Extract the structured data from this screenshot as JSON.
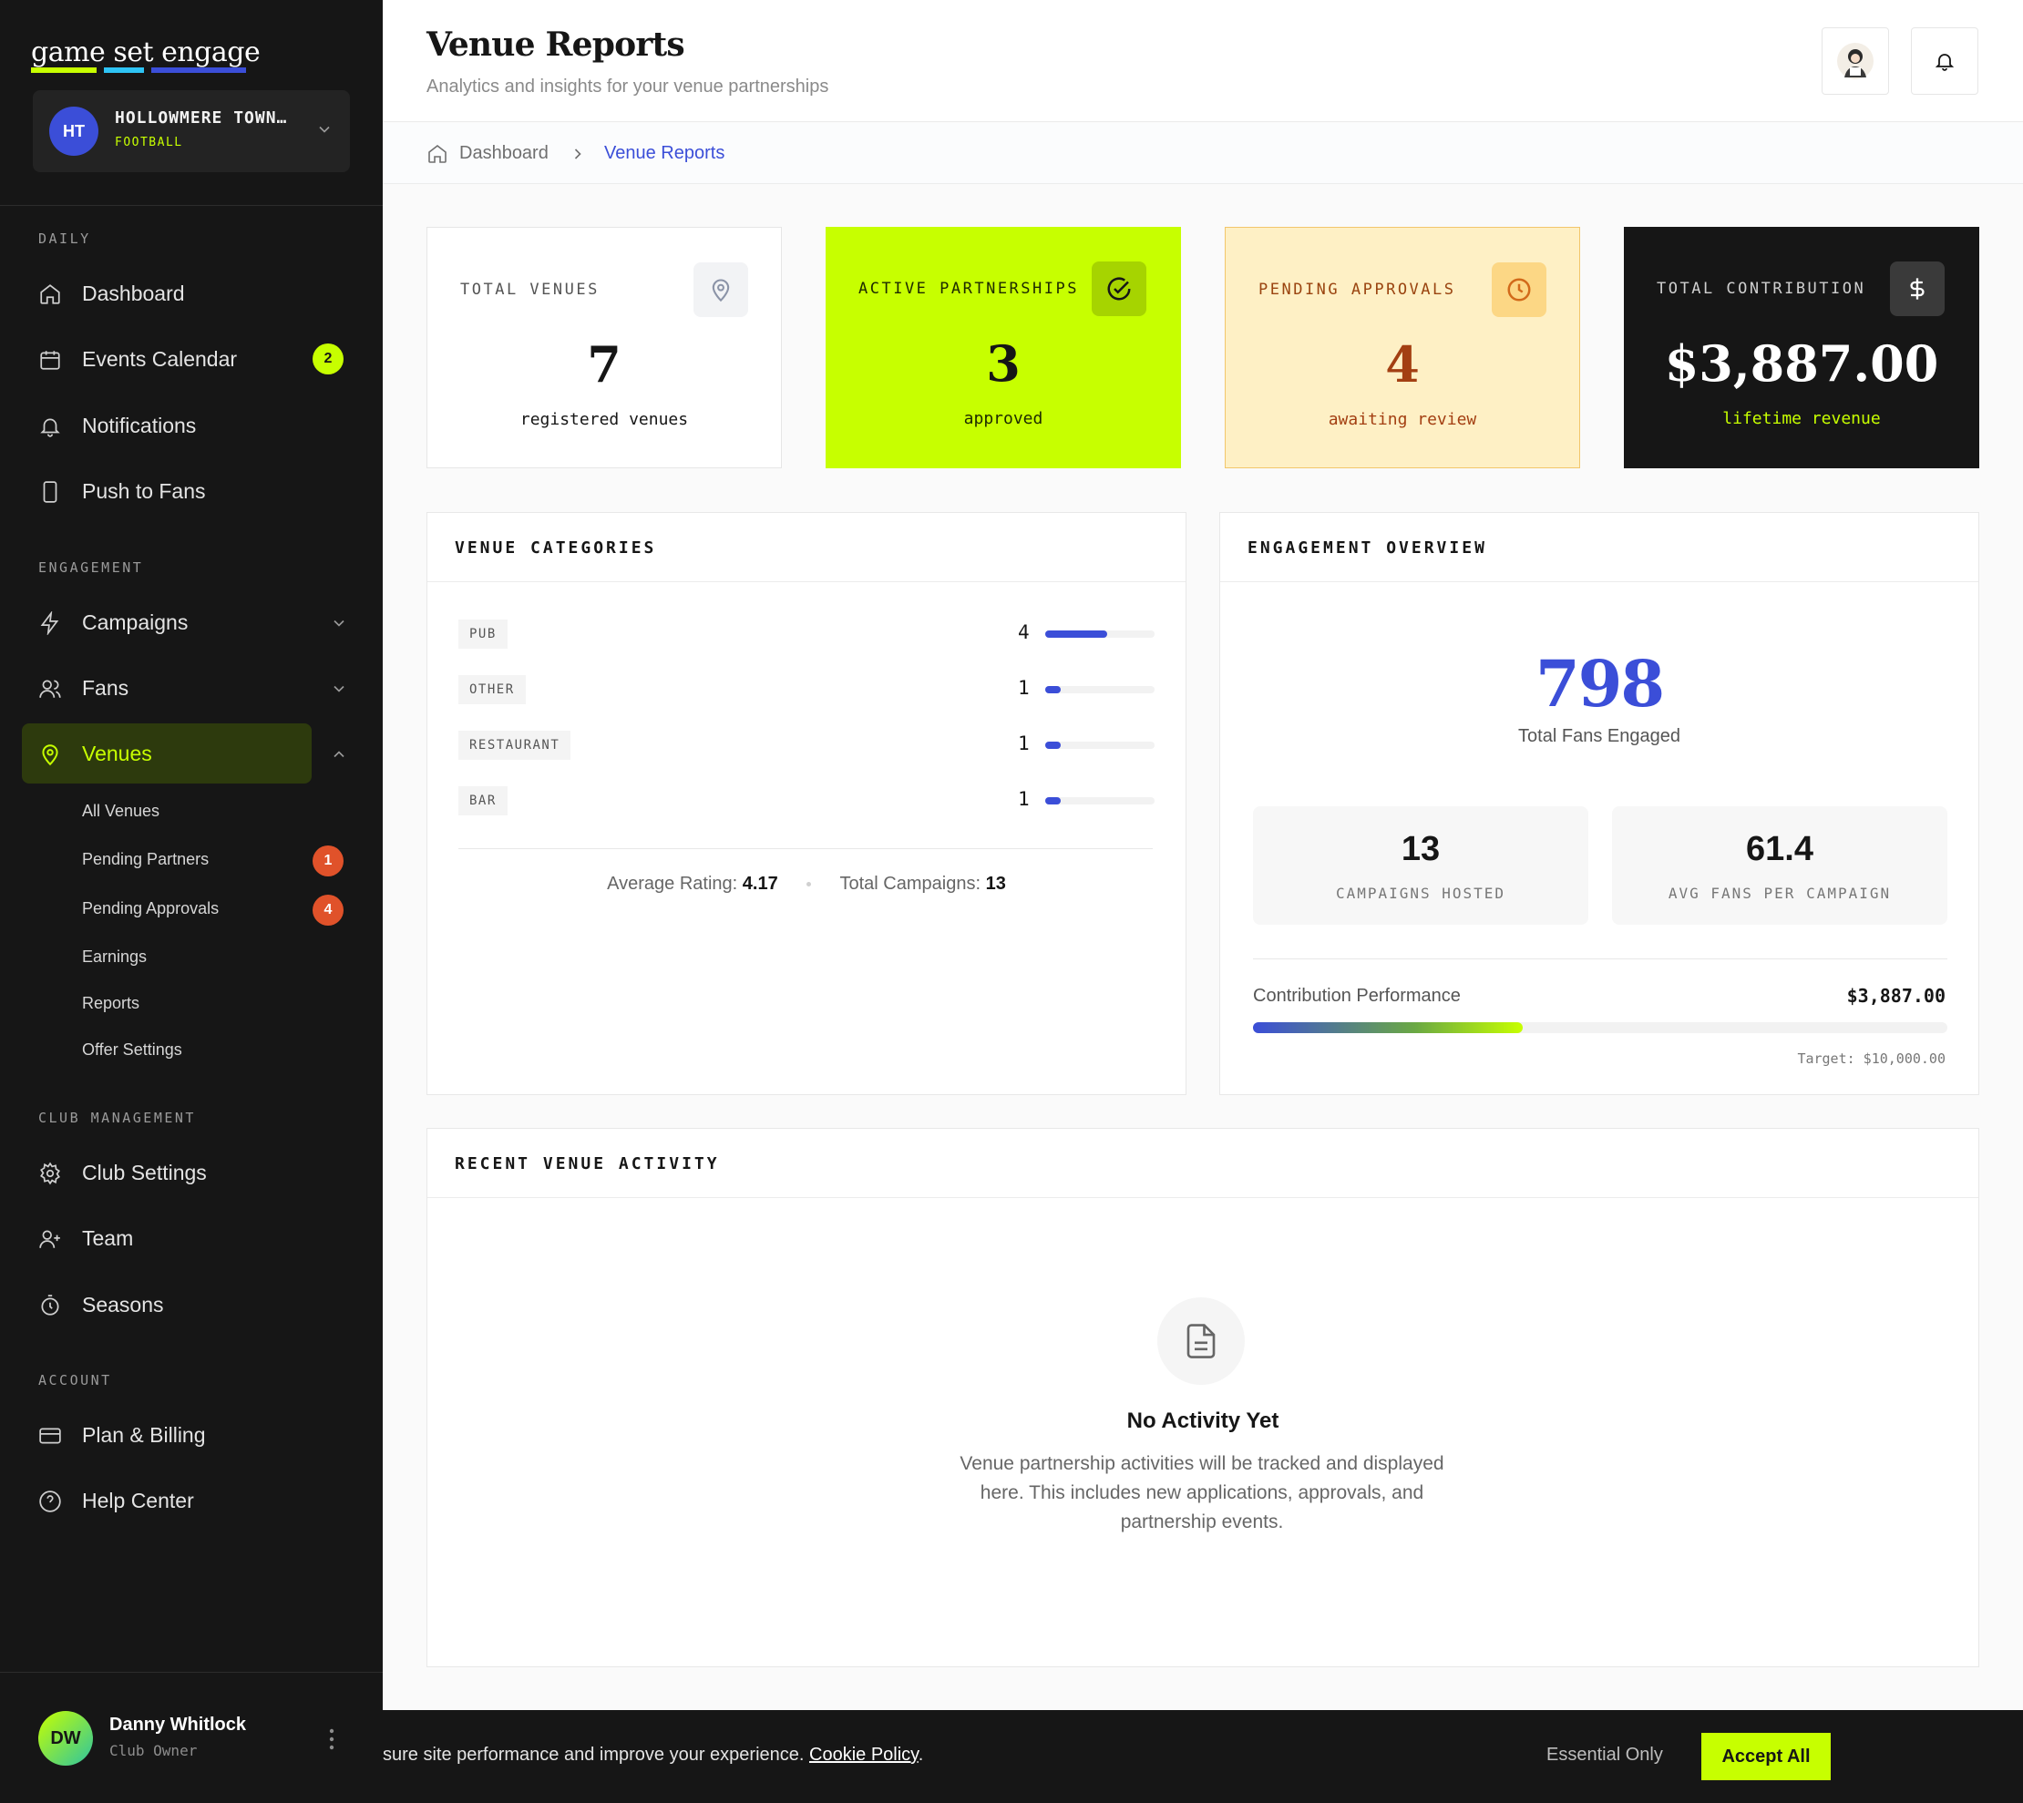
{
  "brand": {
    "logo_text": "game set engage",
    "accent": "#c7ff00",
    "primary": "#3b4ed8"
  },
  "club": {
    "initials": "HT",
    "name": "HOLLOWMERE TOWN…",
    "sport": "FOOTBALL"
  },
  "sidebar": {
    "sections": {
      "daily": "DAILY",
      "engagement": "ENGAGEMENT",
      "club_management": "CLUB MANAGEMENT",
      "account": "ACCOUNT"
    },
    "items": {
      "dashboard": {
        "label": "Dashboard",
        "icon": "home-icon"
      },
      "events_calendar": {
        "label": "Events Calendar",
        "icon": "calendar-icon",
        "badge": "2"
      },
      "notifications": {
        "label": "Notifications",
        "icon": "bell-icon"
      },
      "push_to_fans": {
        "label": "Push to Fans",
        "icon": "smartphone-icon"
      },
      "campaigns": {
        "label": "Campaigns",
        "icon": "lightning-icon"
      },
      "fans": {
        "label": "Fans",
        "icon": "users-icon"
      },
      "venues": {
        "label": "Venues",
        "icon": "map-pin-icon"
      },
      "club_settings": {
        "label": "Club Settings",
        "icon": "gear-icon"
      },
      "team": {
        "label": "Team",
        "icon": "user-plus-icon"
      },
      "seasons": {
        "label": "Seasons",
        "icon": "stopwatch-icon"
      },
      "plan_billing": {
        "label": "Plan & Billing",
        "icon": "credit-card-icon"
      },
      "help_center": {
        "label": "Help Center",
        "icon": "help-circle-icon"
      }
    },
    "venue_sub": {
      "all": "All Venues",
      "pending_partners": "Pending Partners",
      "pending_partners_badge": "1",
      "pending_approvals": "Pending Approvals",
      "pending_approvals_badge": "4",
      "earnings": "Earnings",
      "reports": "Reports",
      "offer_settings": "Offer Settings"
    }
  },
  "user": {
    "initials": "DW",
    "name": "Danny Whitlock",
    "role": "Club Owner"
  },
  "header": {
    "title": "Venue Reports",
    "subtitle": "Analytics and insights for your venue partnerships"
  },
  "breadcrumb": {
    "home": "Dashboard",
    "current": "Venue Reports"
  },
  "stats": {
    "total_venues": {
      "label": "TOTAL VENUES",
      "value": "7",
      "sub": "registered venues"
    },
    "active_partnerships": {
      "label": "ACTIVE PARTNERSHIPS",
      "value": "3",
      "sub": "approved"
    },
    "pending_approvals": {
      "label": "PENDING APPROVALS",
      "value": "4",
      "sub": "awaiting review"
    },
    "total_contribution": {
      "label": "TOTAL CONTRIBUTION",
      "value": "$3,887.00",
      "sub": "lifetime revenue"
    }
  },
  "venue_categories": {
    "title": "VENUE CATEGORIES",
    "rows": [
      {
        "name": "PUB",
        "count": "4",
        "fraction": 0.57
      },
      {
        "name": "OTHER",
        "count": "1",
        "fraction": 0.14
      },
      {
        "name": "RESTAURANT",
        "count": "1",
        "fraction": 0.14
      },
      {
        "name": "BAR",
        "count": "1",
        "fraction": 0.14
      }
    ],
    "avg_rating_label": "Average Rating:",
    "avg_rating": "4.17",
    "total_campaigns_label": "Total Campaigns:",
    "total_campaigns": "13"
  },
  "engagement": {
    "title": "ENGAGEMENT OVERVIEW",
    "total_fans": "798",
    "total_fans_label": "Total Fans Engaged",
    "campaigns_hosted": "13",
    "campaigns_hosted_label": "CAMPAIGNS HOSTED",
    "avg_fans": "61.4",
    "avg_fans_label": "AVG FANS PER CAMPAIGN",
    "performance_label": "Contribution Performance",
    "performance_value": "$3,887.00",
    "performance_fraction": 0.3887,
    "target": "Target: $10,000.00"
  },
  "recent_activity": {
    "title": "RECENT VENUE ACTIVITY",
    "empty_title": "No Activity Yet",
    "empty_text": "Venue partnership activities will be tracked and displayed here. This includes new applications, approvals, and partnership events."
  },
  "cookie": {
    "text": "sure site performance and improve your experience.",
    "link": "Cookie Policy",
    "essential": "Essential Only",
    "accept": "Accept All"
  }
}
